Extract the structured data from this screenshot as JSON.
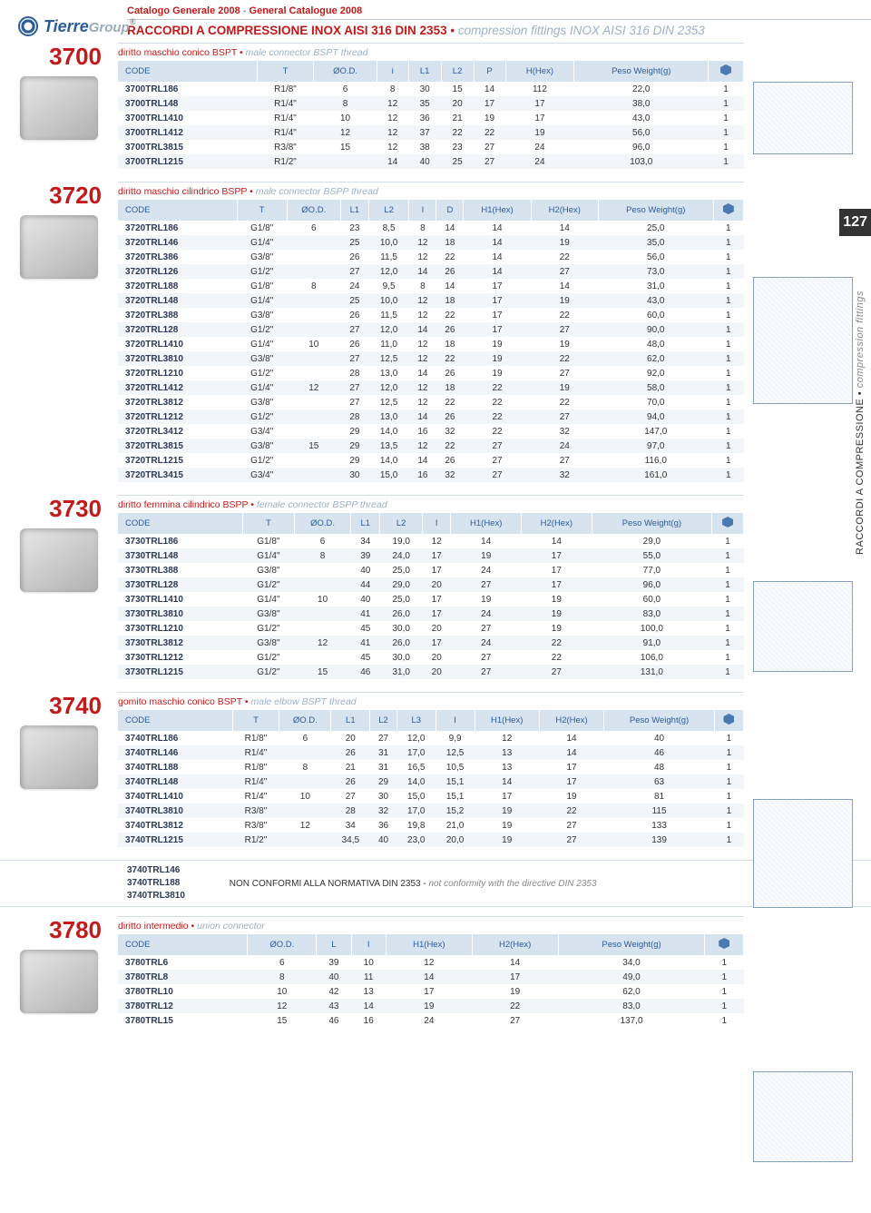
{
  "header_catalog": "Catalogo Generale 2008",
  "header_catalog_en": "General Catalogue 2008",
  "header_title_it": "RACCORDI A COMPRESSIONE INOX AISI 316 DIN 2353",
  "header_title_en": "compression fittings INOX AISI 316 DIN 2353",
  "logo_name": "Tierre",
  "logo_suffix": "Group",
  "page_number": "127",
  "side_text_it": "RACCORDI A COMPRESSIONE",
  "side_text_en": "compression fittings",
  "col_code": "CODE",
  "col_T": "T",
  "col_OD": "ØO.D.",
  "col_i": "i",
  "col_L": "L",
  "col_L1": "L1",
  "col_L2": "L2",
  "col_L3": "L3",
  "col_P": "P",
  "col_I": "I",
  "col_D": "D",
  "col_H": "H(Hex)",
  "col_H1": "H1(Hex)",
  "col_H2": "H2(Hex)",
  "col_weight": "Peso\nWeight(g)",
  "s3700": {
    "num": "3700",
    "sub_it": "diritto maschio conico BSPT",
    "sub_en": "male connector BSPT thread",
    "rows": [
      [
        "3700TRL186",
        "R1/8\"",
        "6",
        "8",
        "30",
        "15",
        "14",
        "112",
        "22,0",
        "1"
      ],
      [
        "3700TRL148",
        "R1/4\"",
        "8",
        "12",
        "35",
        "20",
        "17",
        "17",
        "38,0",
        "1"
      ],
      [
        "3700TRL1410",
        "R1/4\"",
        "10",
        "12",
        "36",
        "21",
        "19",
        "17",
        "43,0",
        "1"
      ],
      [
        "3700TRL1412",
        "R1/4\"",
        "12",
        "12",
        "37",
        "22",
        "22",
        "19",
        "56,0",
        "1"
      ],
      [
        "3700TRL3815",
        "R3/8\"",
        "15",
        "12",
        "38",
        "23",
        "27",
        "24",
        "96,0",
        "1"
      ],
      [
        "3700TRL1215",
        "R1/2\"",
        "",
        "14",
        "40",
        "25",
        "27",
        "24",
        "103,0",
        "1"
      ]
    ]
  },
  "s3720": {
    "num": "3720",
    "sub_it": "diritto maschio cilindrico BSPP",
    "sub_en": "male connector BSPP thread",
    "rows": [
      [
        "3720TRL186",
        "G1/8\"",
        "6",
        "23",
        "8,5",
        "8",
        "14",
        "14",
        "14",
        "25,0",
        "1"
      ],
      [
        "3720TRL146",
        "G1/4\"",
        "",
        "25",
        "10,0",
        "12",
        "18",
        "14",
        "19",
        "35,0",
        "1"
      ],
      [
        "3720TRL386",
        "G3/8\"",
        "",
        "26",
        "11,5",
        "12",
        "22",
        "14",
        "22",
        "56,0",
        "1"
      ],
      [
        "3720TRL126",
        "G1/2\"",
        "",
        "27",
        "12,0",
        "14",
        "26",
        "14",
        "27",
        "73,0",
        "1"
      ],
      [
        "3720TRL188",
        "G1/8\"",
        "8",
        "24",
        "9,5",
        "8",
        "14",
        "17",
        "14",
        "31,0",
        "1"
      ],
      [
        "3720TRL148",
        "G1/4\"",
        "",
        "25",
        "10,0",
        "12",
        "18",
        "17",
        "19",
        "43,0",
        "1"
      ],
      [
        "3720TRL388",
        "G3/8\"",
        "",
        "26",
        "11,5",
        "12",
        "22",
        "17",
        "22",
        "60,0",
        "1"
      ],
      [
        "3720TRL128",
        "G1/2\"",
        "",
        "27",
        "12,0",
        "14",
        "26",
        "17",
        "27",
        "90,0",
        "1"
      ],
      [
        "3720TRL1410",
        "G1/4\"",
        "10",
        "26",
        "11,0",
        "12",
        "18",
        "19",
        "19",
        "48,0",
        "1"
      ],
      [
        "3720TRL3810",
        "G3/8\"",
        "",
        "27",
        "12,5",
        "12",
        "22",
        "19",
        "22",
        "62,0",
        "1"
      ],
      [
        "3720TRL1210",
        "G1/2\"",
        "",
        "28",
        "13,0",
        "14",
        "26",
        "19",
        "27",
        "92,0",
        "1"
      ],
      [
        "3720TRL1412",
        "G1/4\"",
        "12",
        "27",
        "12,0",
        "12",
        "18",
        "22",
        "19",
        "58,0",
        "1"
      ],
      [
        "3720TRL3812",
        "G3/8\"",
        "",
        "27",
        "12,5",
        "12",
        "22",
        "22",
        "22",
        "70,0",
        "1"
      ],
      [
        "3720TRL1212",
        "G1/2\"",
        "",
        "28",
        "13,0",
        "14",
        "26",
        "22",
        "27",
        "94,0",
        "1"
      ],
      [
        "3720TRL3412",
        "G3/4\"",
        "",
        "29",
        "14,0",
        "16",
        "32",
        "22",
        "32",
        "147,0",
        "1"
      ],
      [
        "3720TRL3815",
        "G3/8\"",
        "15",
        "29",
        "13,5",
        "12",
        "22",
        "27",
        "24",
        "97,0",
        "1"
      ],
      [
        "3720TRL1215",
        "G1/2\"",
        "",
        "29",
        "14,0",
        "14",
        "26",
        "27",
        "27",
        "116,0",
        "1"
      ],
      [
        "3720TRL3415",
        "G3/4\"",
        "",
        "30",
        "15,0",
        "16",
        "32",
        "27",
        "32",
        "161,0",
        "1"
      ]
    ]
  },
  "s3730": {
    "num": "3730",
    "sub_it": "diritto femmina cilindrico BSPP",
    "sub_en": "female connector BSPP thread",
    "rows": [
      [
        "3730TRL186",
        "G1/8\"",
        "6",
        "34",
        "19,0",
        "12",
        "14",
        "14",
        "29,0",
        "1"
      ],
      [
        "3730TRL148",
        "G1/4\"",
        "8",
        "39",
        "24,0",
        "17",
        "19",
        "17",
        "55,0",
        "1"
      ],
      [
        "3730TRL388",
        "G3/8\"",
        "",
        "40",
        "25,0",
        "17",
        "24",
        "17",
        "77,0",
        "1"
      ],
      [
        "3730TRL128",
        "G1/2\"",
        "",
        "44",
        "29,0",
        "20",
        "27",
        "17",
        "96,0",
        "1"
      ],
      [
        "3730TRL1410",
        "G1/4\"",
        "10",
        "40",
        "25,0",
        "17",
        "19",
        "19",
        "60,0",
        "1"
      ],
      [
        "3730TRL3810",
        "G3/8\"",
        "",
        "41",
        "26,0",
        "17",
        "24",
        "19",
        "83,0",
        "1"
      ],
      [
        "3730TRL1210",
        "G1/2\"",
        "",
        "45",
        "30,0",
        "20",
        "27",
        "19",
        "100,0",
        "1"
      ],
      [
        "3730TRL3812",
        "G3/8\"",
        "12",
        "41",
        "26,0",
        "17",
        "24",
        "22",
        "91,0",
        "1"
      ],
      [
        "3730TRL1212",
        "G1/2\"",
        "",
        "45",
        "30,0",
        "20",
        "27",
        "22",
        "106,0",
        "1"
      ],
      [
        "3730TRL1215",
        "G1/2\"",
        "15",
        "46",
        "31,0",
        "20",
        "27",
        "27",
        "131,0",
        "1"
      ]
    ]
  },
  "s3740": {
    "num": "3740",
    "sub_it": "gomito maschio conico BSPT",
    "sub_en": "male elbow BSPT thread",
    "rows": [
      [
        "3740TRL186",
        "R1/8\"",
        "6",
        "20",
        "27",
        "12,0",
        "9,9",
        "12",
        "14",
        "40",
        "1"
      ],
      [
        "3740TRL146",
        "R1/4\"",
        "",
        "26",
        "31",
        "17,0",
        "12,5",
        "13",
        "14",
        "46",
        "1"
      ],
      [
        "3740TRL188",
        "R1/8\"",
        "8",
        "21",
        "31",
        "16,5",
        "10,5",
        "13",
        "17",
        "48",
        "1"
      ],
      [
        "3740TRL148",
        "R1/4\"",
        "",
        "26",
        "29",
        "14,0",
        "15,1",
        "14",
        "17",
        "63",
        "1"
      ],
      [
        "3740TRL1410",
        "R1/4\"",
        "10",
        "27",
        "30",
        "15,0",
        "15,1",
        "17",
        "19",
        "81",
        "1"
      ],
      [
        "3740TRL3810",
        "R3/8\"",
        "",
        "28",
        "32",
        "17,0",
        "15,2",
        "19",
        "22",
        "115",
        "1"
      ],
      [
        "3740TRL3812",
        "R3/8\"",
        "12",
        "34",
        "36",
        "19,8",
        "21,0",
        "19",
        "27",
        "133",
        "1"
      ],
      [
        "3740TRL1215",
        "R1/2\"",
        "",
        "34,5",
        "40",
        "23,0",
        "20,0",
        "19",
        "27",
        "139",
        "1"
      ]
    ],
    "note_codes": [
      "3740TRL146",
      "3740TRL188",
      "3740TRL3810"
    ],
    "note_it": "NON CONFORMI ALLA NORMATIVA DIN 2353",
    "note_en": "not conformity with the directive DIN 2353"
  },
  "s3780": {
    "num": "3780",
    "sub_it": "diritto intermedio",
    "sub_en": "union connector",
    "rows": [
      [
        "3780TRL6",
        "6",
        "39",
        "10",
        "12",
        "14",
        "34,0",
        "1"
      ],
      [
        "3780TRL8",
        "8",
        "40",
        "11",
        "14",
        "17",
        "49,0",
        "1"
      ],
      [
        "3780TRL10",
        "10",
        "42",
        "13",
        "17",
        "19",
        "62,0",
        "1"
      ],
      [
        "3780TRL12",
        "12",
        "43",
        "14",
        "19",
        "22",
        "83,0",
        "1"
      ],
      [
        "3780TRL15",
        "15",
        "46",
        "16",
        "24",
        "27",
        "137,0",
        "1"
      ]
    ]
  },
  "colors": {
    "brand_red": "#c21a1a",
    "header_blue": "#d8e3f0",
    "text_blue": "#2a5c9a",
    "row_alt": "#f2f5f9",
    "border": "#d3dde9"
  }
}
